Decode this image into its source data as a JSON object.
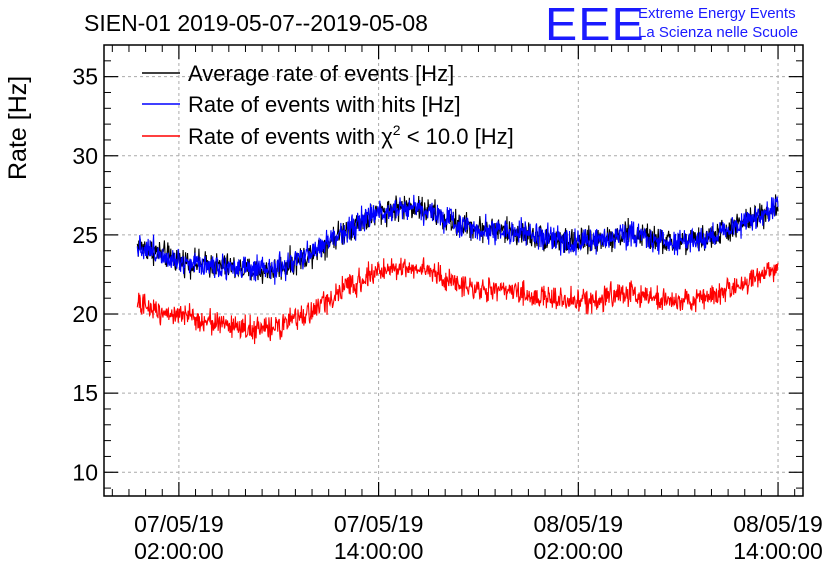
{
  "title": "SIEN-01 2019-05-07--2019-05-08",
  "logo": {
    "mark": "EEE",
    "line1": "Extreme Energy Events",
    "line2": "La Scienza nelle Scuole",
    "color": "#1a1aff"
  },
  "chart_data": {
    "type": "line",
    "title": "SIEN-01 2019-05-07--2019-05-08",
    "ylabel": "Rate [Hz]",
    "xlabel": "",
    "ylim": [
      8.5,
      37
    ],
    "yticks": [
      10,
      15,
      20,
      25,
      30,
      35
    ],
    "xlim_hours": [
      -2.5,
      39.5
    ],
    "xticks": [
      {
        "hour": 2,
        "line1": "07/05/19",
        "line2": "02:00:00"
      },
      {
        "hour": 14,
        "line1": "07/05/19",
        "line2": "14:00:00"
      },
      {
        "hour": 26,
        "line1": "08/05/19",
        "line2": "02:00:00"
      },
      {
        "hour": 38,
        "line1": "08/05/19",
        "line2": "14:00:00"
      }
    ],
    "grid": true,
    "legend_position": "top-left",
    "x_hours": [
      -0.5,
      1,
      2,
      3,
      4,
      5,
      6,
      7,
      8,
      9,
      10,
      11,
      12,
      13,
      14,
      15,
      16,
      17,
      18,
      19,
      20,
      21,
      22,
      23,
      24,
      25,
      26,
      27,
      28,
      29,
      30,
      31,
      32,
      33,
      34,
      35,
      36,
      37,
      38
    ],
    "series": [
      {
        "name": "Average rate of events [Hz]",
        "legend_label": "Average rate of events [Hz]",
        "color": "#000000",
        "values": [
          24.3,
          23.8,
          23.4,
          23.2,
          23.1,
          23.0,
          22.8,
          22.7,
          22.9,
          23.3,
          23.9,
          24.6,
          25.3,
          25.9,
          26.4,
          26.7,
          26.8,
          26.5,
          26.0,
          25.6,
          25.4,
          25.3,
          25.2,
          25.0,
          24.8,
          24.6,
          24.5,
          24.6,
          24.9,
          25.1,
          24.9,
          24.6,
          24.5,
          24.6,
          24.9,
          25.3,
          25.8,
          26.3,
          26.8
        ],
        "noise": 0.7
      },
      {
        "name": "Rate of events with hits [Hz]",
        "legend_label": "Rate of events with hits [Hz]",
        "color": "#0000ff",
        "values": [
          24.3,
          23.8,
          23.4,
          23.2,
          23.1,
          23.0,
          22.8,
          22.7,
          22.9,
          23.3,
          23.9,
          24.6,
          25.3,
          25.9,
          26.4,
          26.7,
          26.8,
          26.5,
          26.0,
          25.6,
          25.4,
          25.3,
          25.2,
          25.0,
          24.8,
          24.6,
          24.5,
          24.6,
          24.9,
          25.1,
          24.9,
          24.6,
          24.5,
          24.6,
          24.9,
          25.3,
          25.8,
          26.3,
          26.8
        ],
        "noise": 0.7
      },
      {
        "name": "Rate of events with chi2 < 10.0 [Hz]",
        "legend_label_prefix": "Rate of events with ",
        "legend_symbol": "χ",
        "legend_superscript": "2",
        "legend_label_suffix": " < 10.0 [Hz]",
        "color": "#ff0000",
        "values": [
          20.6,
          20.2,
          19.9,
          19.7,
          19.5,
          19.3,
          19.1,
          19.0,
          19.2,
          19.6,
          20.2,
          20.9,
          21.6,
          22.2,
          22.7,
          22.9,
          23.0,
          22.7,
          22.2,
          21.8,
          21.6,
          21.5,
          21.4,
          21.2,
          21.0,
          20.9,
          20.8,
          20.9,
          21.2,
          21.3,
          21.2,
          20.9,
          20.8,
          20.9,
          21.1,
          21.5,
          22.0,
          22.5,
          23.0
        ],
        "noise": 0.65
      }
    ]
  }
}
